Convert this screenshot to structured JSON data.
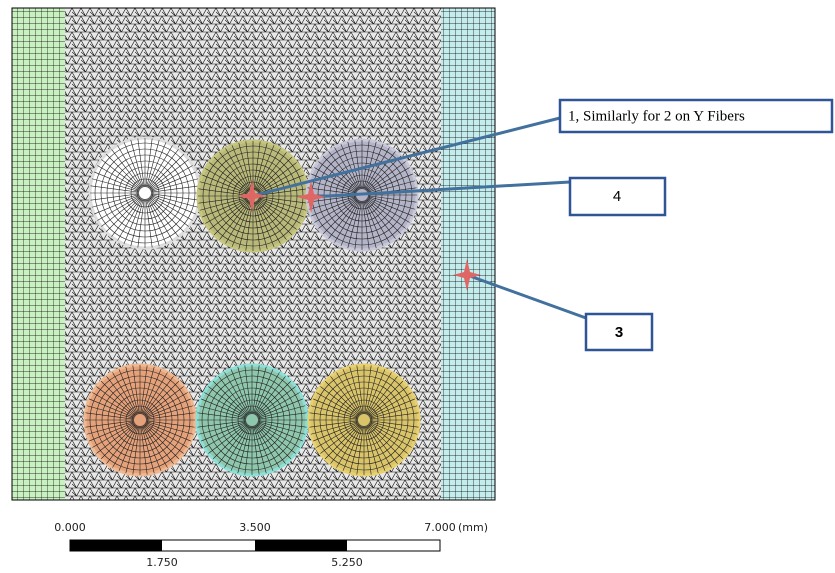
{
  "callouts": [
    {
      "label": "1, Similarly for 2 on Y Fibers"
    },
    {
      "label": "4"
    },
    {
      "label": "3"
    }
  ],
  "scale_bar": {
    "top_labels": [
      "0.000",
      "3.500",
      "7.000"
    ],
    "unit": "(mm)",
    "bottom_labels": [
      "1.750",
      "5.250"
    ]
  }
}
